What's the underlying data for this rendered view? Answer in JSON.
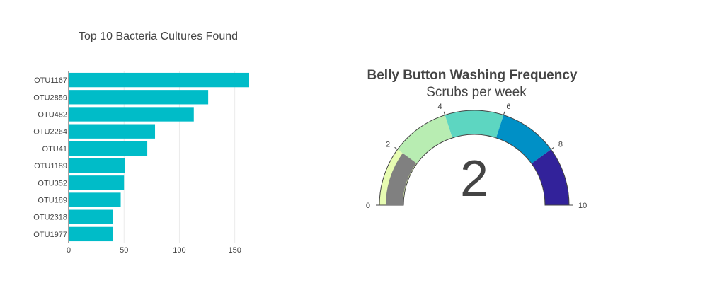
{
  "chart_data": [
    {
      "type": "bar",
      "orientation": "horizontal",
      "title": "Top 10 Bacteria Cultures Found",
      "categories": [
        "OTU1167",
        "OTU2859",
        "OTU482",
        "OTU2264",
        "OTU41",
        "OTU1189",
        "OTU352",
        "OTU189",
        "OTU2318",
        "OTU1977"
      ],
      "values": [
        163,
        126,
        113,
        78,
        71,
        51,
        50,
        47,
        40,
        40
      ],
      "xlim": [
        0,
        163
      ],
      "xticks": [
        "0",
        "50",
        "100",
        "150"
      ],
      "xtick_values": [
        0,
        50,
        100,
        150
      ],
      "color": "#00bcc8",
      "grid": true
    },
    {
      "type": "gauge",
      "title": "Belly Button Washing Frequency",
      "subtitle": "Scrubs per week",
      "value": 2,
      "value_label": "2",
      "range": [
        0,
        10
      ],
      "ticks": [
        "0",
        "2",
        "4",
        "6",
        "8",
        "10"
      ],
      "tick_values": [
        0,
        2,
        4,
        6,
        8,
        10
      ],
      "steps": [
        {
          "range": [
            0,
            2
          ],
          "color": "#e7fcb2"
        },
        {
          "range": [
            2,
            4
          ],
          "color": "#b8edb2"
        },
        {
          "range": [
            4,
            6
          ],
          "color": "#5dd6c1"
        },
        {
          "range": [
            6,
            8
          ],
          "color": "#0090c6"
        },
        {
          "range": [
            8,
            10
          ],
          "color": "#32229a"
        }
      ],
      "bar_color": "#808080"
    }
  ]
}
